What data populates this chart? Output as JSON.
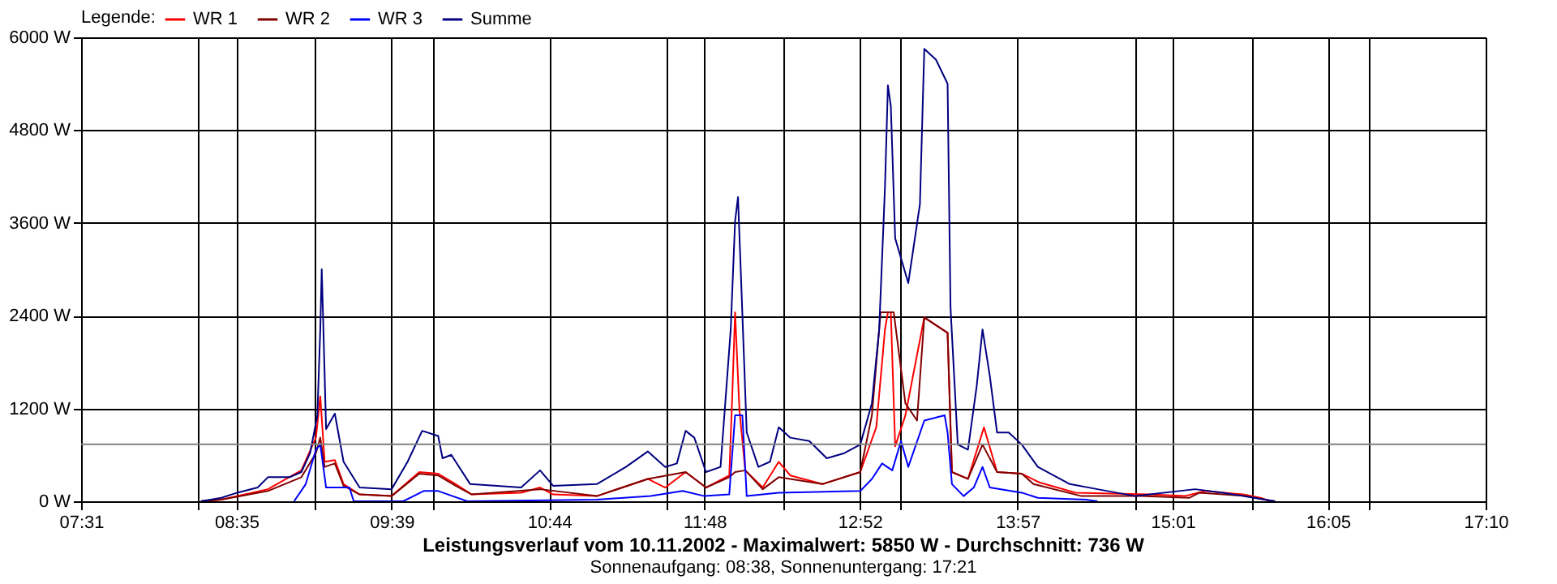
{
  "chart_data": {
    "type": "line",
    "title": "Leistungsverlauf vom 10.11.2002 - Maximalwert: 5850 W - Durchschnitt: 736 W",
    "subtitle": "Sonnenaufgang: 08:38, Sonnenuntergang: 17:21",
    "legend_title": "Legende:",
    "legend": "top left",
    "grid": true,
    "xlim": [
      7.5167,
      17.1667
    ],
    "xticks": [
      {
        "value": 7.5167,
        "label": "07:31"
      },
      {
        "value": 8.3208,
        "label": null
      },
      {
        "value": 8.5833,
        "label": "08:35"
      },
      {
        "value": 9.125,
        "label": null
      },
      {
        "value": 9.65,
        "label": "09:39"
      },
      {
        "value": 9.9292,
        "label": null
      },
      {
        "value": 10.7333,
        "label": "10:44"
      },
      {
        "value": 11.5375,
        "label": null
      },
      {
        "value": 11.8,
        "label": "11:48"
      },
      {
        "value": 12.3417,
        "label": null
      },
      {
        "value": 12.8667,
        "label": "12:52"
      },
      {
        "value": 13.1458,
        "label": null
      },
      {
        "value": 13.95,
        "label": "13:57"
      },
      {
        "value": 14.7542,
        "label": null
      },
      {
        "value": 15.0167,
        "label": "15:01"
      },
      {
        "value": 15.5583,
        "label": null
      },
      {
        "value": 16.0833,
        "label": "16:05"
      },
      {
        "value": 16.3625,
        "label": null
      },
      {
        "value": 17.1667,
        "label": "17:10"
      }
    ],
    "ylim": [
      0,
      6000
    ],
    "yticks": [
      {
        "value": 0,
        "label": "0 W"
      },
      {
        "value": 1200,
        "label": "1200 W"
      },
      {
        "value": 2400,
        "label": "2400 W"
      },
      {
        "value": 3600,
        "label": "3600 W"
      },
      {
        "value": 4800,
        "label": "4800 W"
      },
      {
        "value": 6000,
        "label": "6000 W"
      }
    ],
    "ref_lines": [
      {
        "axis": "y",
        "value": 736,
        "color": "#808080"
      }
    ],
    "series": [
      {
        "name": "WR 1",
        "color": "#ff0000",
        "x": [
          8.34,
          8.48,
          8.8,
          9.03,
          9.13,
          9.16,
          9.19,
          9.26,
          9.32,
          9.43,
          9.65,
          9.84,
          9.97,
          10.09,
          10.2,
          10.54,
          10.67,
          10.76,
          11.06,
          11.41,
          11.53,
          11.67,
          11.81,
          11.97,
          11.99,
          12.01,
          12.04,
          12.08,
          12.2,
          12.31,
          12.39,
          12.61,
          12.87,
          12.98,
          13.04,
          13.06,
          13.08,
          13.11,
          13.18,
          13.31,
          13.47,
          13.5,
          13.61,
          13.72,
          13.81,
          13.98,
          14.1,
          14.35,
          14.85,
          15.1,
          15.24,
          15.5,
          15.62,
          15.69
        ],
        "values": [
          0,
          22,
          156,
          400,
          822,
          1356,
          511,
          533,
          222,
          89,
          67,
          378,
          356,
          222,
          89,
          111,
          178,
          89,
          67,
          289,
          178,
          378,
          178,
          333,
          1333,
          2444,
          1178,
          400,
          178,
          511,
          333,
          222,
          378,
          956,
          2222,
          2444,
          2444,
          711,
          1111,
          2378,
          2178,
          378,
          289,
          956,
          378,
          356,
          244,
          111,
          89,
          67,
          133,
          89,
          44,
          0
        ]
      },
      {
        "name": "WR 2",
        "color": "#800000",
        "x": [
          8.34,
          8.48,
          8.8,
          9.03,
          9.13,
          9.16,
          9.19,
          9.26,
          9.32,
          9.43,
          9.65,
          9.84,
          9.97,
          10.09,
          10.2,
          10.67,
          11.06,
          11.41,
          11.67,
          11.81,
          11.97,
          12.01,
          12.08,
          12.2,
          12.31,
          12.61,
          12.87,
          12.95,
          13.01,
          13.1,
          13.18,
          13.26,
          13.31,
          13.47,
          13.5,
          13.61,
          13.71,
          13.81,
          13.98,
          14.06,
          14.39,
          14.8,
          15.13,
          15.2,
          15.53,
          15.65,
          15.72
        ],
        "values": [
          0,
          22,
          133,
          311,
          622,
          822,
          444,
          489,
          200,
          89,
          67,
          356,
          333,
          200,
          89,
          156,
          67,
          289,
          378,
          178,
          311,
          378,
          400,
          156,
          311,
          222,
          378,
          1111,
          2444,
          2444,
          1267,
          1044,
          2378,
          2178,
          378,
          289,
          733,
          378,
          356,
          222,
          67,
          67,
          44,
          111,
          67,
          22,
          0
        ]
      },
      {
        "name": "WR 3",
        "color": "#0000ff",
        "x": [
          8.98,
          9.06,
          9.13,
          9.16,
          9.2,
          9.36,
          9.39,
          9.73,
          9.87,
          9.97,
          10.17,
          11.06,
          11.43,
          11.65,
          11.8,
          11.97,
          12.01,
          12.06,
          12.09,
          12.31,
          12.87,
          12.95,
          13.02,
          13.09,
          13.15,
          13.2,
          13.31,
          13.45,
          13.47,
          13.5,
          13.58,
          13.65,
          13.71,
          13.76,
          13.98,
          14.09,
          14.42,
          14.5
        ],
        "values": [
          0,
          222,
          667,
          733,
          178,
          178,
          0,
          0,
          133,
          133,
          0,
          22,
          67,
          133,
          67,
          89,
          1111,
          1111,
          67,
          111,
          133,
          289,
          489,
          400,
          778,
          444,
          1044,
          1111,
          889,
          222,
          67,
          178,
          444,
          178,
          111,
          44,
          22,
          0
        ]
      },
      {
        "name": "Summe",
        "color": "#000080",
        "x": [
          8.34,
          8.48,
          8.59,
          8.73,
          8.8,
          8.95,
          9.03,
          9.09,
          9.14,
          9.16,
          9.17,
          9.18,
          9.2,
          9.26,
          9.32,
          9.43,
          9.65,
          9.76,
          9.86,
          9.97,
          10.0,
          10.06,
          10.19,
          10.54,
          10.67,
          10.76,
          11.06,
          11.26,
          11.41,
          11.53,
          11.61,
          11.67,
          11.73,
          11.81,
          11.91,
          11.98,
          12.01,
          12.03,
          12.05,
          12.09,
          12.17,
          12.25,
          12.31,
          12.39,
          12.52,
          12.64,
          12.76,
          12.87,
          12.95,
          13.0,
          13.04,
          13.06,
          13.08,
          13.11,
          13.2,
          13.28,
          13.31,
          13.39,
          13.47,
          13.49,
          13.54,
          13.61,
          13.67,
          13.71,
          13.76,
          13.81,
          13.89,
          13.98,
          14.09,
          14.31,
          14.5,
          14.76,
          15.17,
          15.36,
          15.65,
          15.72
        ],
        "values": [
          0,
          44,
          111,
          178,
          311,
          311,
          378,
          622,
          1111,
          2222,
          3000,
          2333,
          933,
          1133,
          511,
          178,
          156,
          511,
          911,
          844,
          556,
          600,
          222,
          178,
          400,
          200,
          222,
          444,
          644,
          444,
          489,
          911,
          822,
          378,
          444,
          2222,
          3622,
          3933,
          2933,
          889,
          444,
          511,
          956,
          822,
          778,
          556,
          622,
          733,
          1267,
          2222,
          4067,
          5378,
          5111,
          3400,
          2822,
          3844,
          5850,
          5711,
          5400,
          2511,
          733,
          667,
          1489,
          2222,
          1622,
          889,
          889,
          733,
          444,
          222,
          156,
          67,
          156,
          111,
          22,
          0
        ]
      }
    ]
  }
}
